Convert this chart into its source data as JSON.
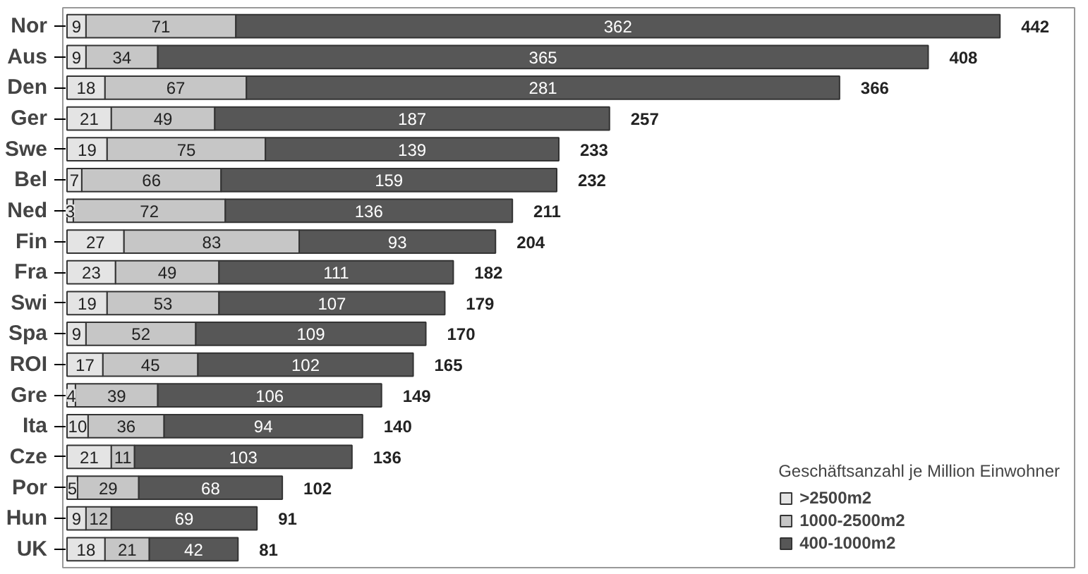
{
  "chart_data": {
    "type": "bar",
    "orientation": "horizontal",
    "stacked": true,
    "data_labels": true,
    "legend": "bottom right",
    "legend_title": "Geschäftsanzahl je Million Einwohner",
    "categories": [
      "Nor",
      "Aus",
      "Den",
      "Ger",
      "Swe",
      "Bel",
      "Ned",
      "Fin",
      "Fra",
      "Swi",
      "Spa",
      "ROI",
      "Gre",
      "Ita",
      "Cze",
      "Por",
      "Hun",
      "UK"
    ],
    "series": [
      {
        "name": ">2500m2",
        "color": "#e4e4e4",
        "values": [
          9,
          9,
          18,
          21,
          19,
          7,
          3,
          27,
          23,
          19,
          9,
          17,
          4,
          10,
          21,
          5,
          9,
          18
        ]
      },
      {
        "name": "1000-2500m2",
        "color": "#c6c6c6",
        "values": [
          71,
          34,
          67,
          49,
          75,
          66,
          72,
          83,
          49,
          53,
          52,
          45,
          39,
          36,
          11,
          29,
          12,
          21
        ]
      },
      {
        "name": "400-1000m2",
        "color": "#575757",
        "values": [
          362,
          365,
          281,
          187,
          139,
          159,
          136,
          93,
          111,
          107,
          109,
          102,
          106,
          94,
          103,
          68,
          69,
          42
        ]
      }
    ],
    "totals": [
      "442",
      "408",
      "366",
      "257",
      "233",
      "232",
      "211",
      "204",
      "182",
      "179",
      "170",
      "165",
      "149",
      "140",
      "136",
      "102",
      "91",
      "81"
    ]
  }
}
